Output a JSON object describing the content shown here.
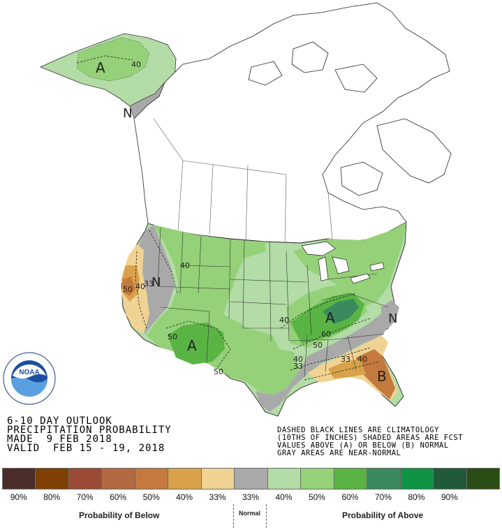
{
  "title": {
    "line1": "6-10 DAY OUTLOOK",
    "line2": "PRECIPITATION PROBABILITY",
    "line3": "MADE  9 FEB 2018",
    "line4": "VALID  FEB 15 - 19, 2018"
  },
  "notes": {
    "line1": "DASHED BLACK LINES ARE CLIMATOLOGY",
    "line2": "(10THS OF INCHES) SHADED AREAS ARE FCST",
    "line3": "VALUES ABOVE (A) OR BELOW (B) NORMAL",
    "line4": "GRAY AREAS ARE NEAR-NORMAL"
  },
  "logo": {
    "center_text": "NOAA",
    "ring_text": "NATIONAL OCEANIC AND ATMOSPHERIC ADMINISTRATION · U.S. DEPARTMENT OF COMMERCE"
  },
  "map_labels": {
    "alaska_a": "A",
    "alaska_40": "40",
    "panhandle_n": "N",
    "west_n": "N",
    "west_40": "40",
    "ca_50": "50",
    "ca_40": "40",
    "ca_33": "33",
    "sw_50": "50",
    "sw_a": "A",
    "tx_50": "50",
    "mid_40": "40",
    "ov_a": "A",
    "ov_60": "60",
    "ov_50": "50",
    "south_40": "40",
    "south_33": "33",
    "se_33": "33",
    "se_40": "40",
    "fl_b": "B",
    "east_n": "N"
  },
  "legend": {
    "colors": [
      "#4b2d2b",
      "#7f3f05",
      "#9a4a35",
      "#b36a42",
      "#c47a3e",
      "#d9a24a",
      "#f0d393",
      "#a9a9a9",
      "#b3dca6",
      "#94d178",
      "#59b444",
      "#3a8a5e",
      "#0f9446",
      "#205a38",
      "#2b4c14"
    ],
    "labels": [
      "90%",
      "80%",
      "70%",
      "60%",
      "50%",
      "40%",
      "33%",
      "33%",
      "40%",
      "50%",
      "60%",
      "70%",
      "80%",
      "90%",
      ""
    ],
    "below_label": "Probability of Below",
    "normal_label": "Normal",
    "above_label": "Probability of Above"
  }
}
